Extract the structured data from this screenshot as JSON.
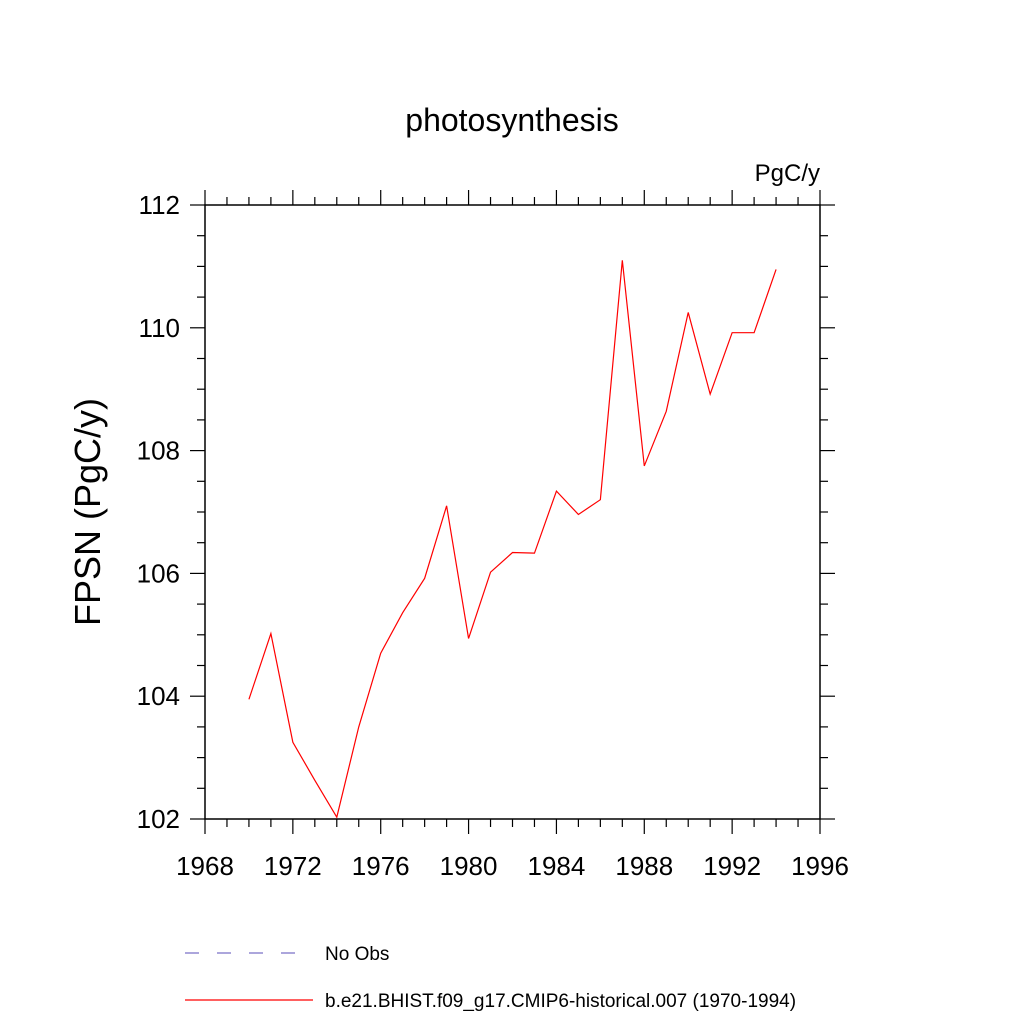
{
  "chart_data": {
    "type": "line",
    "title": "photosynthesis",
    "units": "PgC/y",
    "ylabel": "FPSN  (PgC/y)",
    "xlabel": "",
    "xlim": [
      1968,
      1996
    ],
    "ylim": [
      102,
      112
    ],
    "xticks": [
      1968,
      1972,
      1976,
      1980,
      1984,
      1988,
      1992,
      1996
    ],
    "yticks": [
      102,
      104,
      106,
      108,
      110,
      112
    ],
    "x_minor_step": 1,
    "y_minor_step": 0.5,
    "grid": false,
    "legend_position": "bottom",
    "series": [
      {
        "name": "b.e21.BHIST.f09_g17.CMIP6-historical.007 (1970-1994)",
        "color": "#ff0000",
        "style": "solid",
        "x": [
          1970,
          1971,
          1972,
          1973,
          1974,
          1975,
          1976,
          1977,
          1978,
          1979,
          1980,
          1981,
          1982,
          1983,
          1984,
          1985,
          1986,
          1987,
          1988,
          1989,
          1990,
          1991,
          1992,
          1993,
          1994
        ],
        "y": [
          103.95,
          105.02,
          103.25,
          102.63,
          102.03,
          103.5,
          104.7,
          105.36,
          105.92,
          107.1,
          104.94,
          106.02,
          106.34,
          106.33,
          107.34,
          106.96,
          107.2,
          111.1,
          107.75,
          108.64,
          110.25,
          108.92,
          109.92,
          109.92,
          110.95
        ]
      }
    ],
    "legend": [
      {
        "label": "No Obs",
        "color": "#7b72c8",
        "style": "dashed"
      },
      {
        "label": "b.e21.BHIST.f09_g17.CMIP6-historical.007 (1970-1994)",
        "color": "#ff0000",
        "style": "solid"
      }
    ]
  }
}
